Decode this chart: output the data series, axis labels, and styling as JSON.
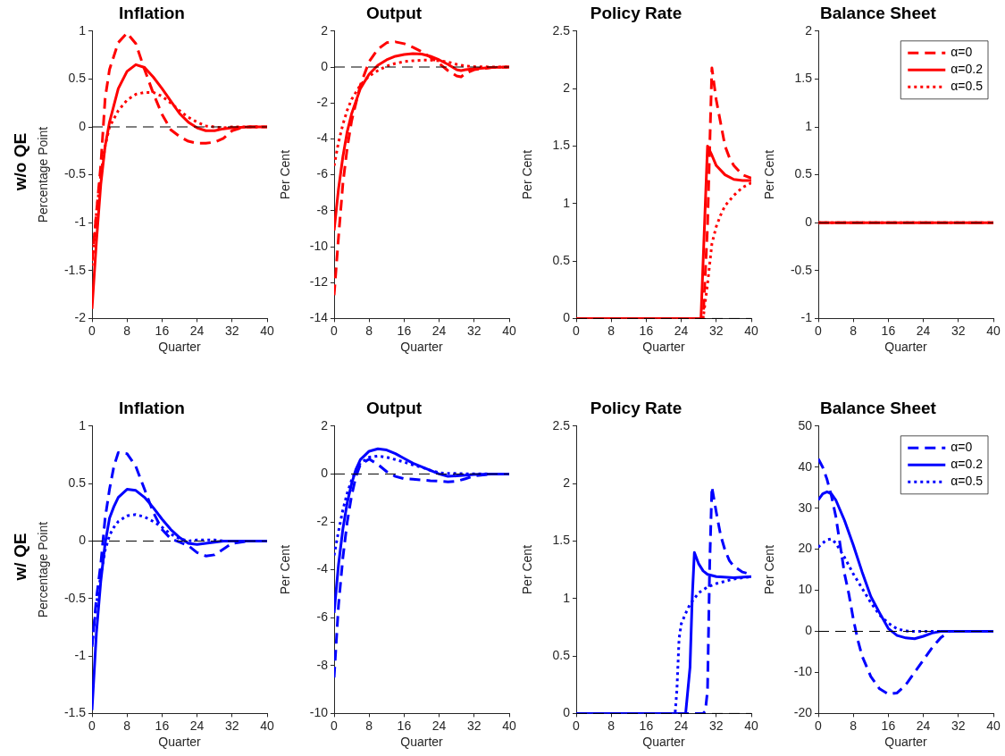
{
  "chart_data": [
    {
      "type": "line",
      "title": "Inflation",
      "xlabel": "Quarter",
      "ylabel": "Percentage Point",
      "annotations": [
        "w/o QE"
      ],
      "xlim": [
        0,
        40
      ],
      "xticks": [
        0,
        8,
        16,
        24,
        32,
        40
      ],
      "ylim": [
        -2,
        1
      ],
      "yticks": [
        -2,
        -1.5,
        -1,
        -0.5,
        0,
        0.5,
        1
      ],
      "grid": false,
      "legend": false,
      "ref_lines": [
        {
          "axis": "y",
          "value": 0,
          "color": "#000000",
          "line_style": "dashed"
        }
      ],
      "series": [
        {
          "color": "#ff0000",
          "line_style": "dashed",
          "x": [
            0,
            1,
            2,
            3,
            4,
            6,
            8,
            10,
            12,
            14,
            16,
            18,
            20,
            22,
            24,
            26,
            28,
            30,
            32,
            34,
            36,
            40
          ],
          "values": [
            -1.4,
            -0.9,
            -0.4,
            0.3,
            0.6,
            0.88,
            0.98,
            0.87,
            0.6,
            0.35,
            0.13,
            -0.03,
            -0.1,
            -0.15,
            -0.17,
            -0.17,
            -0.16,
            -0.12,
            -0.04,
            -0.01,
            0,
            0
          ]
        },
        {
          "color": "#ff0000",
          "line_style": "solid",
          "x": [
            0,
            1,
            2,
            3,
            4,
            6,
            8,
            10,
            12,
            14,
            16,
            18,
            20,
            22,
            24,
            26,
            28,
            30,
            32,
            36,
            40
          ],
          "values": [
            -1.9,
            -1.2,
            -0.6,
            -0.2,
            0.05,
            0.4,
            0.58,
            0.65,
            0.62,
            0.52,
            0.4,
            0.27,
            0.14,
            0.05,
            -0.01,
            -0.04,
            -0.04,
            -0.02,
            -0.01,
            0,
            0
          ]
        },
        {
          "color": "#ff0000",
          "line_style": "dotted",
          "x": [
            0,
            1,
            2,
            3,
            4,
            6,
            8,
            10,
            12,
            14,
            16,
            18,
            20,
            22,
            24,
            26,
            28,
            30,
            32,
            36,
            40
          ],
          "values": [
            -1.45,
            -0.9,
            -0.5,
            -0.2,
            0,
            0.17,
            0.28,
            0.34,
            0.36,
            0.36,
            0.32,
            0.25,
            0.17,
            0.1,
            0.05,
            0.01,
            0,
            -0.01,
            0,
            0,
            0
          ]
        }
      ]
    },
    {
      "type": "line",
      "title": "Output",
      "xlabel": "Quarter",
      "ylabel": "Per Cent",
      "xlim": [
        0,
        40
      ],
      "xticks": [
        0,
        8,
        16,
        24,
        32,
        40
      ],
      "ylim": [
        -14,
        2
      ],
      "yticks": [
        -14,
        -12,
        -10,
        -8,
        -6,
        -4,
        -2,
        0,
        2
      ],
      "grid": false,
      "legend": false,
      "ref_lines": [
        {
          "axis": "y",
          "value": 0,
          "color": "#000000",
          "line_style": "dashed"
        }
      ],
      "series": [
        {
          "color": "#ff0000",
          "line_style": "dashed",
          "x": [
            0,
            1,
            2,
            3,
            4,
            6,
            8,
            10,
            12,
            14,
            16,
            18,
            20,
            22,
            24,
            26,
            28,
            29,
            30,
            32,
            36,
            40
          ],
          "values": [
            -12.7,
            -9.5,
            -6.5,
            -4.5,
            -3,
            -1,
            0.3,
            1,
            1.35,
            1.4,
            1.3,
            1.1,
            0.85,
            0.55,
            0.2,
            -0.2,
            -0.5,
            -0.55,
            -0.35,
            -0.15,
            -0.03,
            0
          ]
        },
        {
          "color": "#ff0000",
          "line_style": "solid",
          "x": [
            0,
            1,
            2,
            3,
            4,
            6,
            8,
            10,
            12,
            14,
            16,
            18,
            20,
            22,
            24,
            26,
            28,
            29,
            30,
            32,
            36,
            40
          ],
          "values": [
            -9.1,
            -6.8,
            -5,
            -3.6,
            -2.6,
            -1.2,
            -0.4,
            0.1,
            0.4,
            0.6,
            0.7,
            0.75,
            0.72,
            0.6,
            0.4,
            0.15,
            -0.15,
            -0.2,
            -0.15,
            -0.1,
            -0.03,
            0
          ]
        },
        {
          "color": "#ff0000",
          "line_style": "dotted",
          "x": [
            0,
            1,
            2,
            3,
            4,
            6,
            8,
            10,
            12,
            14,
            16,
            18,
            20,
            22,
            24,
            26,
            28,
            29,
            30,
            32,
            36,
            40
          ],
          "values": [
            -5.5,
            -4.2,
            -3.2,
            -2.4,
            -1.8,
            -1,
            -0.5,
            -0.2,
            0.05,
            0.2,
            0.3,
            0.35,
            0.38,
            0.38,
            0.35,
            0.28,
            0.15,
            0.1,
            0.05,
            0.02,
            0,
            0
          ]
        }
      ]
    },
    {
      "type": "line",
      "title": "Policy Rate",
      "xlabel": "Quarter",
      "ylabel": "Per Cent",
      "xlim": [
        0,
        40
      ],
      "xticks": [
        0,
        8,
        16,
        24,
        32,
        40
      ],
      "ylim": [
        0,
        2.5
      ],
      "yticks": [
        0,
        0.5,
        1,
        1.5,
        2,
        2.5
      ],
      "grid": false,
      "legend": false,
      "ref_lines": [
        {
          "axis": "y",
          "value": 0,
          "color": "#000000",
          "line_style": "dashed"
        }
      ],
      "series": [
        {
          "color": "#ff0000",
          "line_style": "dashed",
          "x": [
            0,
            29,
            30,
            31,
            32,
            33,
            34,
            35,
            36,
            38,
            40
          ],
          "values": [
            0,
            0,
            0.8,
            2.18,
            1.9,
            1.7,
            1.5,
            1.4,
            1.33,
            1.25,
            1.22
          ]
        },
        {
          "color": "#ff0000",
          "line_style": "solid",
          "x": [
            0,
            28.5,
            30,
            31,
            32,
            34,
            36,
            38,
            40
          ],
          "values": [
            0,
            0,
            1.5,
            1.42,
            1.33,
            1.25,
            1.21,
            1.2,
            1.2
          ]
        },
        {
          "color": "#ff0000",
          "line_style": "dotted",
          "x": [
            0,
            29,
            30,
            31,
            32,
            33,
            34,
            36,
            38,
            40
          ],
          "values": [
            0,
            0,
            0.3,
            0.65,
            0.8,
            0.9,
            0.98,
            1.07,
            1.14,
            1.18
          ]
        }
      ]
    },
    {
      "type": "line",
      "title": "Balance Sheet",
      "xlabel": "Quarter",
      "ylabel": "Per Cent",
      "xlim": [
        0,
        40
      ],
      "xticks": [
        0,
        8,
        16,
        24,
        32,
        40
      ],
      "ylim": [
        -1,
        2
      ],
      "yticks": [
        -1,
        -0.5,
        0,
        0.5,
        1,
        1.5,
        2
      ],
      "grid": false,
      "legend": "top right",
      "ref_lines": [
        {
          "axis": "y",
          "value": 0,
          "color": "#000000",
          "line_style": "dashed"
        }
      ],
      "series": [
        {
          "name": "α=0",
          "color": "#ff0000",
          "line_style": "dashed",
          "x": [
            0,
            40
          ],
          "values": [
            0,
            0
          ]
        },
        {
          "name": "α=0.2",
          "color": "#ff0000",
          "line_style": "solid",
          "x": [
            0,
            40
          ],
          "values": [
            0,
            0
          ]
        },
        {
          "name": "α=0.5",
          "color": "#ff0000",
          "line_style": "dotted",
          "x": [
            0,
            40
          ],
          "values": [
            0,
            0
          ]
        }
      ]
    },
    {
      "type": "line",
      "title": "Inflation",
      "xlabel": "Quarter",
      "ylabel": "Percentage Point",
      "annotations": [
        "w/ QE"
      ],
      "xlim": [
        0,
        40
      ],
      "xticks": [
        0,
        8,
        16,
        24,
        32,
        40
      ],
      "ylim": [
        -1.5,
        1
      ],
      "yticks": [
        -1.5,
        -1,
        -0.5,
        0,
        0.5,
        1
      ],
      "grid": false,
      "legend": false,
      "ref_lines": [
        {
          "axis": "y",
          "value": 0,
          "color": "#000000",
          "line_style": "dashed"
        }
      ],
      "series": [
        {
          "color": "#0000ff",
          "line_style": "dashed",
          "x": [
            0,
            1,
            2,
            3,
            4,
            5,
            6,
            8,
            10,
            12,
            14,
            16,
            18,
            20,
            22,
            24,
            26,
            28,
            30,
            32,
            36,
            40
          ],
          "values": [
            -0.92,
            -0.5,
            -0.2,
            0.2,
            0.45,
            0.65,
            0.77,
            0.76,
            0.65,
            0.45,
            0.25,
            0.1,
            0.02,
            -0.01,
            -0.04,
            -0.1,
            -0.13,
            -0.12,
            -0.07,
            -0.02,
            0,
            0
          ]
        },
        {
          "color": "#0000ff",
          "line_style": "solid",
          "x": [
            0,
            1,
            2,
            3,
            4,
            5,
            6,
            8,
            10,
            12,
            14,
            16,
            18,
            20,
            22,
            24,
            26,
            28,
            30,
            32,
            36,
            40
          ],
          "values": [
            -1.47,
            -0.8,
            -0.35,
            -0.02,
            0.2,
            0.3,
            0.38,
            0.45,
            0.44,
            0.38,
            0.29,
            0.19,
            0.1,
            0.03,
            -0.02,
            -0.03,
            -0.02,
            -0.01,
            0,
            0,
            0,
            0
          ]
        },
        {
          "color": "#0000ff",
          "line_style": "dotted",
          "x": [
            0,
            1,
            2,
            3,
            4,
            5,
            6,
            8,
            10,
            12,
            14,
            16,
            18,
            20,
            22,
            24,
            26,
            28,
            30,
            32,
            36,
            40
          ],
          "values": [
            -0.9,
            -0.55,
            -0.3,
            -0.08,
            0.05,
            0.12,
            0.17,
            0.22,
            0.23,
            0.21,
            0.17,
            0.12,
            0.06,
            0.02,
            0,
            0.01,
            0.01,
            0.01,
            0,
            0,
            0,
            0
          ]
        }
      ]
    },
    {
      "type": "line",
      "title": "Output",
      "xlabel": "Quarter",
      "ylabel": "Per Cent",
      "xlim": [
        0,
        40
      ],
      "xticks": [
        0,
        8,
        16,
        24,
        32,
        40
      ],
      "ylim": [
        -10,
        2
      ],
      "yticks": [
        -10,
        -8,
        -6,
        -4,
        -2,
        0,
        2
      ],
      "grid": false,
      "legend": false,
      "ref_lines": [
        {
          "axis": "y",
          "value": 0,
          "color": "#000000",
          "line_style": "dashed"
        }
      ],
      "series": [
        {
          "color": "#0000ff",
          "line_style": "dashed",
          "x": [
            0,
            1,
            2,
            3,
            4,
            5,
            6,
            8,
            10,
            12,
            14,
            16,
            18,
            20,
            22,
            24,
            26,
            28,
            30,
            32,
            36,
            40
          ],
          "values": [
            -8.5,
            -5.5,
            -3.5,
            -2,
            -0.9,
            -0.1,
            0.4,
            0.62,
            0.4,
            0.1,
            -0.1,
            -0.2,
            -0.22,
            -0.25,
            -0.28,
            -0.3,
            -0.33,
            -0.3,
            -0.2,
            -0.08,
            0,
            0
          ]
        },
        {
          "color": "#0000ff",
          "line_style": "solid",
          "x": [
            0,
            1,
            2,
            3,
            4,
            5,
            6,
            8,
            10,
            12,
            14,
            16,
            18,
            20,
            22,
            24,
            26,
            28,
            30,
            32,
            36,
            40
          ],
          "values": [
            -5.8,
            -3.8,
            -2.3,
            -1.2,
            -0.4,
            0.2,
            0.6,
            0.95,
            1.05,
            1,
            0.85,
            0.65,
            0.45,
            0.3,
            0.15,
            0,
            -0.1,
            -0.08,
            -0.05,
            -0.02,
            0,
            0
          ]
        },
        {
          "color": "#0000ff",
          "line_style": "dotted",
          "x": [
            0,
            1,
            2,
            3,
            4,
            5,
            6,
            8,
            10,
            12,
            14,
            16,
            18,
            20,
            22,
            24,
            26,
            28,
            30,
            32,
            36,
            40
          ],
          "values": [
            -3.4,
            -2.4,
            -1.5,
            -0.8,
            -0.25,
            0.15,
            0.45,
            0.7,
            0.75,
            0.7,
            0.6,
            0.5,
            0.38,
            0.28,
            0.15,
            0.05,
            0.02,
            0.02,
            0.01,
            0.01,
            0,
            0
          ]
        }
      ]
    },
    {
      "type": "line",
      "title": "Policy Rate",
      "xlabel": "Quarter",
      "ylabel": "Per Cent",
      "xlim": [
        0,
        40
      ],
      "xticks": [
        0,
        8,
        16,
        24,
        32,
        40
      ],
      "ylim": [
        0,
        2.5
      ],
      "yticks": [
        0,
        0.5,
        1,
        1.5,
        2,
        2.5
      ],
      "grid": false,
      "legend": false,
      "ref_lines": [
        {
          "axis": "y",
          "value": 0,
          "color": "#000000",
          "line_style": "dashed"
        }
      ],
      "series": [
        {
          "color": "#0000ff",
          "line_style": "dashed",
          "x": [
            0,
            29,
            29.5,
            30,
            30.5,
            31,
            32,
            33,
            34,
            35,
            36,
            38,
            40
          ],
          "values": [
            0,
            0,
            0.02,
            0.2,
            1.3,
            1.97,
            1.75,
            1.55,
            1.42,
            1.33,
            1.28,
            1.23,
            1.21
          ]
        },
        {
          "color": "#0000ff",
          "line_style": "solid",
          "x": [
            0,
            25,
            26,
            26.5,
            27,
            28,
            29,
            30,
            32,
            36,
            40
          ],
          "values": [
            0,
            0,
            0.4,
            1,
            1.4,
            1.3,
            1.24,
            1.21,
            1.19,
            1.18,
            1.19
          ]
        },
        {
          "color": "#0000ff",
          "line_style": "dotted",
          "x": [
            0,
            22.6,
            23,
            23.5,
            24,
            25,
            26,
            27,
            28,
            30,
            32,
            34,
            36,
            38,
            40
          ],
          "values": [
            0,
            0,
            0.2,
            0.65,
            0.78,
            0.87,
            0.95,
            1,
            1.05,
            1.1,
            1.13,
            1.15,
            1.17,
            1.18,
            1.19
          ]
        }
      ]
    },
    {
      "type": "line",
      "title": "Balance Sheet",
      "xlabel": "Quarter",
      "ylabel": "Per Cent",
      "xlim": [
        0,
        40
      ],
      "xticks": [
        0,
        8,
        16,
        24,
        32,
        40
      ],
      "ylim": [
        -20,
        50
      ],
      "yticks": [
        -20,
        -10,
        0,
        10,
        20,
        30,
        40,
        50
      ],
      "grid": false,
      "legend": "top right",
      "ref_lines": [
        {
          "axis": "y",
          "value": 0,
          "color": "#000000",
          "line_style": "dashed"
        }
      ],
      "series": [
        {
          "name": "α=0",
          "color": "#0000ff",
          "line_style": "dashed",
          "x": [
            0,
            1,
            2,
            3,
            4,
            5,
            6,
            7,
            8,
            9,
            10,
            12,
            14,
            16,
            18,
            20,
            22,
            24,
            26,
            28,
            30,
            32,
            40
          ],
          "values": [
            42,
            40,
            37,
            33,
            28,
            21,
            14,
            9,
            3,
            -2,
            -6,
            -11,
            -14,
            -15.3,
            -15,
            -13,
            -10,
            -7,
            -4,
            -1.5,
            0,
            0,
            0
          ]
        },
        {
          "name": "α=0.2",
          "color": "#0000ff",
          "line_style": "solid",
          "x": [
            0,
            1,
            2,
            3,
            4,
            6,
            8,
            10,
            12,
            14,
            16,
            18,
            20,
            22,
            24,
            26,
            28,
            40
          ],
          "values": [
            32,
            33.5,
            34,
            33.5,
            32,
            27,
            21,
            14.5,
            8.5,
            4.5,
            0.7,
            -1,
            -1.6,
            -1.8,
            -1.2,
            -0.4,
            0,
            0
          ]
        },
        {
          "name": "α=0.5",
          "color": "#0000ff",
          "line_style": "dotted",
          "x": [
            0,
            1,
            2,
            3,
            4,
            6,
            8,
            10,
            12,
            14,
            16,
            18,
            20,
            22,
            40
          ],
          "values": [
            20.5,
            21.5,
            22.3,
            22.5,
            21.5,
            18,
            14,
            10.5,
            7,
            4,
            2,
            0.6,
            0.1,
            0,
            0
          ]
        }
      ]
    }
  ]
}
